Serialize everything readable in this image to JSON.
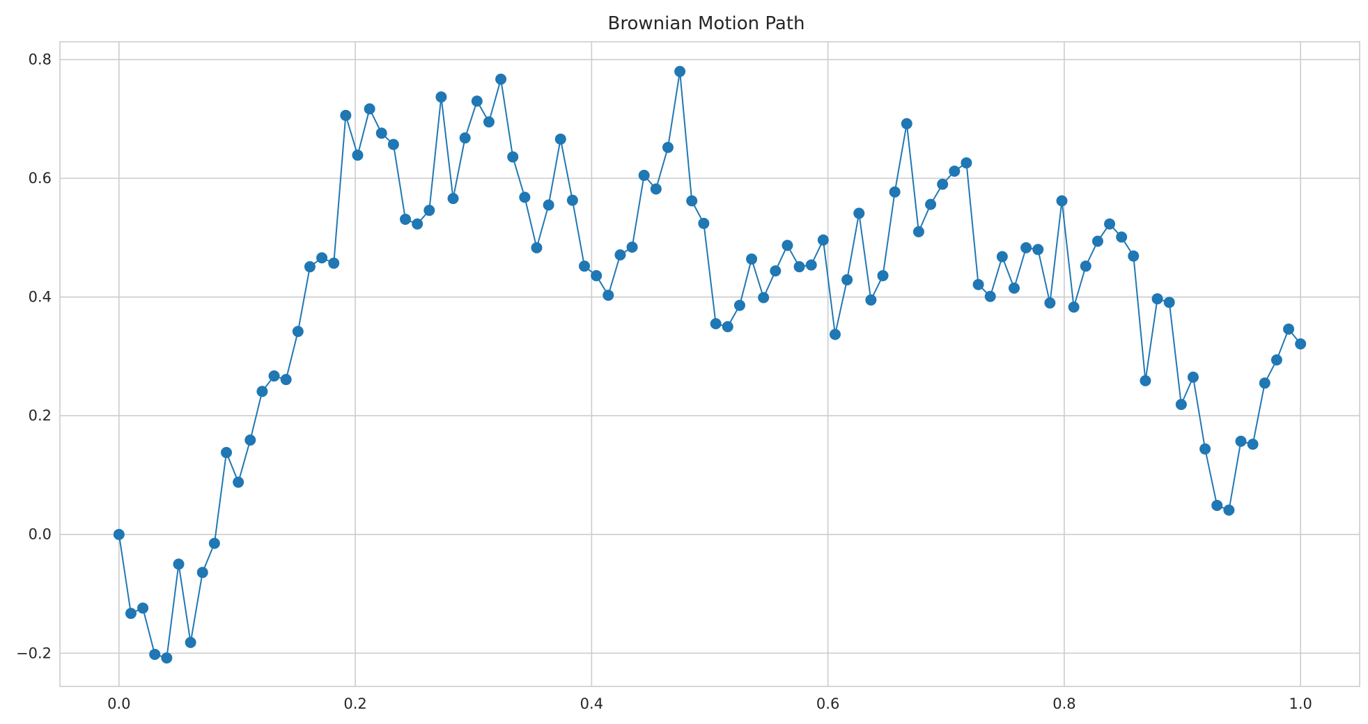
{
  "chart_data": {
    "type": "line",
    "title": "Brownian Motion Path",
    "xlabel": "",
    "ylabel": "",
    "xlim": [
      -0.05,
      1.05
    ],
    "ylim": [
      -0.256,
      0.83
    ],
    "grid": true,
    "marker": "circle",
    "xticks": [
      0.0,
      0.2,
      0.4,
      0.6,
      0.8,
      1.0
    ],
    "xtick_labels": [
      "0.0",
      "0.2",
      "0.4",
      "0.6",
      "0.8",
      "1.0"
    ],
    "yticks": [
      -0.2,
      0.0,
      0.2,
      0.4,
      0.6,
      0.8
    ],
    "ytick_labels": [
      "−0.2",
      "0.0",
      "0.2",
      "0.4",
      "0.6",
      "0.8"
    ],
    "x": [
      0.0,
      0.0101,
      0.0202,
      0.0303,
      0.0404,
      0.0505,
      0.0606,
      0.0707,
      0.0808,
      0.0909,
      0.101,
      0.1111,
      0.1212,
      0.1313,
      0.1414,
      0.1515,
      0.1616,
      0.1717,
      0.1818,
      0.1919,
      0.202,
      0.2121,
      0.2222,
      0.2323,
      0.2424,
      0.2525,
      0.2626,
      0.2727,
      0.2828,
      0.2929,
      0.303,
      0.3131,
      0.3232,
      0.3333,
      0.3434,
      0.3535,
      0.3636,
      0.3737,
      0.3838,
      0.3939,
      0.404,
      0.4141,
      0.4242,
      0.4343,
      0.4444,
      0.4545,
      0.4646,
      0.4747,
      0.4848,
      0.4949,
      0.5051,
      0.5152,
      0.5253,
      0.5354,
      0.5455,
      0.5556,
      0.5657,
      0.5758,
      0.5859,
      0.596,
      0.6061,
      0.6162,
      0.6263,
      0.6364,
      0.6465,
      0.6566,
      0.6667,
      0.6768,
      0.6869,
      0.697,
      0.7071,
      0.7172,
      0.7273,
      0.7374,
      0.7475,
      0.7576,
      0.7677,
      0.7778,
      0.7879,
      0.798,
      0.8081,
      0.8182,
      0.8283,
      0.8384,
      0.8485,
      0.8586,
      0.8687,
      0.8788,
      0.8889,
      0.899,
      0.9091,
      0.9192,
      0.9293,
      0.9394,
      0.9495,
      0.9596,
      0.9697,
      0.9798,
      0.9899,
      1.0
    ],
    "series": [
      {
        "color": "#1f77b4",
        "values": [
          0.0,
          -0.133,
          -0.124,
          -0.202,
          -0.208,
          -0.05,
          -0.182,
          -0.064,
          -0.015,
          0.138,
          0.088,
          0.159,
          0.241,
          0.267,
          0.261,
          0.342,
          0.451,
          0.466,
          0.457,
          0.706,
          0.639,
          0.717,
          0.676,
          0.657,
          0.531,
          0.523,
          0.546,
          0.737,
          0.566,
          0.668,
          0.73,
          0.695,
          0.767,
          0.636,
          0.568,
          0.483,
          0.555,
          0.666,
          0.563,
          0.452,
          0.436,
          0.403,
          0.471,
          0.484,
          0.605,
          0.582,
          0.652,
          0.78,
          0.562,
          0.524,
          0.355,
          0.35,
          0.386,
          0.464,
          0.399,
          0.444,
          0.487,
          0.451,
          0.454,
          0.496,
          0.337,
          0.429,
          0.541,
          0.395,
          0.436,
          0.577,
          0.692,
          0.51,
          0.556,
          0.59,
          0.612,
          0.626,
          0.421,
          0.401,
          0.468,
          0.415,
          0.483,
          0.48,
          0.39,
          0.562,
          0.383,
          0.452,
          0.494,
          0.523,
          0.501,
          0.469,
          0.259,
          0.397,
          0.391,
          0.219,
          0.265,
          0.144,
          0.049,
          0.041,
          0.157,
          0.152,
          0.255,
          0.294,
          0.346,
          0.321
        ]
      }
    ]
  }
}
